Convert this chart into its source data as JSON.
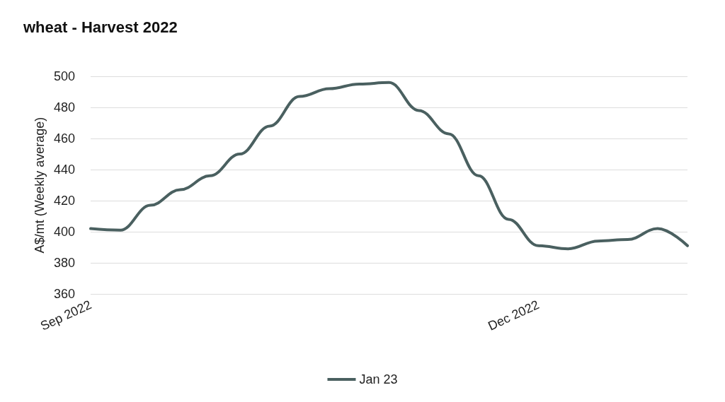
{
  "chart_data": {
    "type": "line",
    "title": "wheat - Harvest 2022",
    "ylabel": "A$/mt (Weekly average)",
    "categories": [
      "Sep 2022",
      null,
      null,
      null,
      null,
      null,
      null,
      null,
      null,
      null,
      null,
      null,
      null,
      null,
      null,
      "Dec 2022",
      null,
      null,
      null,
      null,
      null
    ],
    "series": [
      {
        "name": "Jan 23",
        "color": "#4a6060",
        "values": [
          402,
          401,
          417,
          427,
          436,
          450,
          468,
          487,
          492,
          495,
          496,
          478,
          463,
          436,
          408,
          391,
          389,
          394,
          395,
          402,
          391
        ]
      }
    ],
    "ylim": [
      360,
      500
    ],
    "yticks": [
      360,
      380,
      400,
      420,
      440,
      460,
      480,
      500
    ],
    "grid": "y",
    "legend": "bottom",
    "marker": "none",
    "line_style": "solid"
  }
}
